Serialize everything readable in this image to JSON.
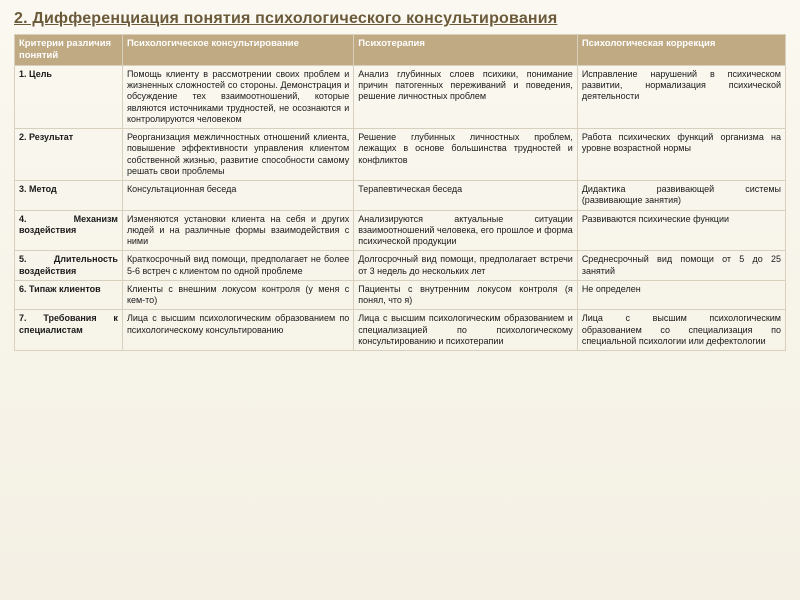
{
  "title": "2. Дифференциация понятия психологического консультирования",
  "table": {
    "columns": [
      "Критерии различия понятий",
      "Психологическое консультирование",
      "Психотерапия",
      "Психологическая коррекция"
    ],
    "col_widths_pct": [
      14,
      30,
      29,
      27
    ],
    "rows": [
      {
        "criterion": "1. Цель",
        "consulting": "Помощь клиенту в рассмотрении своих проблем и жизненных сложностей со стороны. Демонстрация и обсуждение тех взаимоотношений, которые являются источниками трудностей, не осознаются и контролируются человеком",
        "therapy": "Анализ глубинных слоев психики, понимание причин патогенных переживаний и поведения, решение личностных проблем",
        "correction": "Исправление нарушений в психическом развитии, нормализация психической деятельности"
      },
      {
        "criterion": "2. Результат",
        "consulting": "Реорганизация межличностных отношений клиента, повышение эффективности управления клиентом собственной жизнью, развитие способности самому решать свои проблемы",
        "therapy": "Решение глубинных личностных проблем, лежащих в основе большинства трудностей и конфликтов",
        "correction": "Работа психических функций организма на уровне возрастной нормы"
      },
      {
        "criterion": "3. Метод",
        "consulting": "Консультационная беседа",
        "therapy": "Терапевтическая беседа",
        "correction": "Дидактика развивающей системы (развивающие занятия)"
      },
      {
        "criterion": "4. Механизм воздействия",
        "consulting": "Изменяются установки клиента на себя и других людей и на различные формы взаимодействия с ними",
        "therapy": "Анализируются актуальные ситуации взаимоотношений человека, его прошлое и форма психической продукции",
        "correction": "Развиваются психические функции"
      },
      {
        "criterion": "5. Длительность воздействия",
        "consulting": "Краткосрочный вид помощи, предполагает не более 5-6 встреч с клиентом по одной проблеме",
        "therapy": "Долгосрочный вид помощи, предполагает встречи от 3 недель до нескольких лет",
        "correction": "Среднесрочный вид помощи от 5 до 25 занятий"
      },
      {
        "criterion": "6. Типаж клиентов",
        "consulting": "Клиенты с внешним локусом контроля (у меня с кем-то)",
        "therapy": "Пациенты с внутренним локусом контроля (я понял, что я)",
        "correction": "Не определен"
      },
      {
        "criterion": "7. Требования к специалистам",
        "consulting": "Лица с высшим психологическим образованием по психологическому консультированию",
        "therapy": "Лица с высшим психологическим образованием и специализацией по психологическому консультированию и психотерапии",
        "correction": "Лица с высшим психологическим образованием со специализация по специальной психологии или дефектологии"
      }
    ],
    "header_bg": "#c0aa83",
    "header_fg": "#ffffff",
    "cell_border": "#d8d0bc",
    "page_bg": "#f4f0e4",
    "title_color": "#6b5a3a",
    "font_family": "Verdana",
    "title_fontsize_pt": 12,
    "header_fontsize_pt": 7,
    "cell_fontsize_pt": 7
  }
}
